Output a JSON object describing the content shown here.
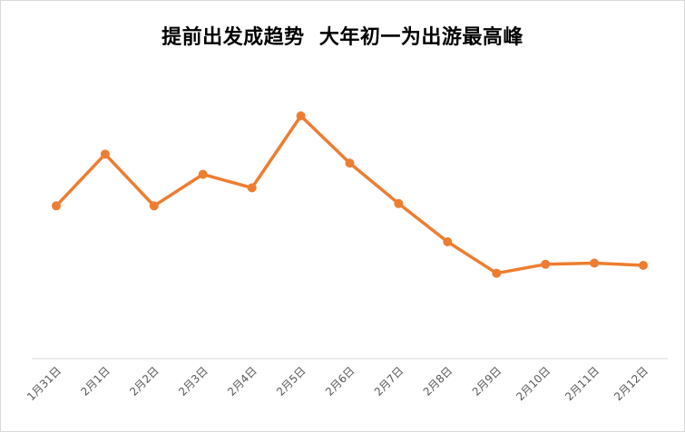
{
  "chart_data": {
    "type": "line",
    "title": "提前出发成趋势  大年初一为出游最高峰",
    "xlabel": "",
    "ylabel": "",
    "categories": [
      "1月31日",
      "2月1日",
      "2月2日",
      "2月3日",
      "2月4日",
      "2月5日",
      "2月6日",
      "2月7日",
      "2月8日",
      "2月9日",
      "2月10日",
      "2月11日",
      "2月12日"
    ],
    "series": [
      {
        "values": [
          68,
          91,
          68,
          82,
          76,
          108,
          87,
          69,
          52,
          38,
          42,
          42.5,
          41.5
        ]
      }
    ],
    "ylim": [
      0,
      135
    ],
    "grid": false,
    "legend": "none",
    "colors": {
      "line": "#ED7D31",
      "axis": "#D9D9D9",
      "tick_text": "#595959"
    }
  }
}
